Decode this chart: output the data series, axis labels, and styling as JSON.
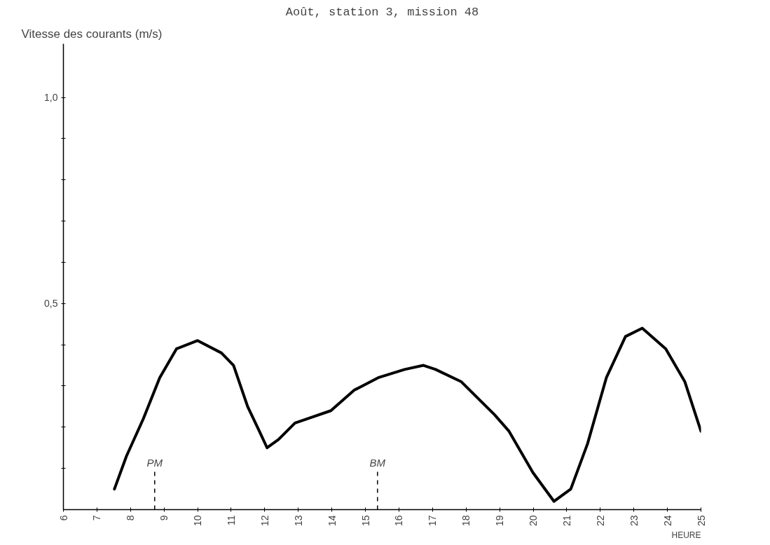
{
  "chart_data": {
    "type": "line",
    "title": "Août, station 3, mission 48",
    "ylabel": "Vitesse des courants (m/s)",
    "xlabel": "HEURE",
    "x": [
      7.52,
      7.88,
      8.38,
      8.87,
      9.37,
      10.0,
      10.71,
      11.07,
      11.49,
      11.84,
      12.07,
      12.41,
      12.9,
      13.25,
      13.97,
      14.67,
      15.38,
      16.17,
      16.73,
      17.09,
      17.86,
      18.85,
      19.28,
      19.99,
      20.62,
      21.12,
      21.62,
      21.9,
      22.18,
      22.75,
      23.25,
      23.95,
      24.52,
      25.0
    ],
    "series": [
      {
        "color": "#000000",
        "values": [
          0.05,
          0.13,
          0.22,
          0.32,
          0.39,
          0.41,
          0.38,
          0.35,
          0.25,
          0.19,
          0.15,
          0.17,
          0.21,
          0.22,
          0.24,
          0.29,
          0.32,
          0.34,
          0.35,
          0.34,
          0.31,
          0.23,
          0.19,
          0.09,
          0.02,
          0.05,
          0.16,
          0.24,
          0.32,
          0.42,
          0.44,
          0.39,
          0.31,
          0.19
        ]
      }
    ],
    "xlim": [
      6,
      25
    ],
    "ylim": [
      0,
      1.13
    ],
    "xticks": [
      6,
      7,
      8,
      9,
      10,
      11,
      12,
      13,
      14,
      15,
      16,
      17,
      18,
      19,
      20,
      21,
      22,
      23,
      24,
      25
    ],
    "yticks": [
      {
        "value": 0.1,
        "label": null
      },
      {
        "value": 0.2,
        "label": null
      },
      {
        "value": 0.3,
        "label": null
      },
      {
        "value": 0.4,
        "label": null
      },
      {
        "value": 0.5,
        "label": "0,5"
      },
      {
        "value": 0.6,
        "label": null
      },
      {
        "value": 0.7,
        "label": null
      },
      {
        "value": 0.8,
        "label": null
      },
      {
        "value": 0.9,
        "label": null
      },
      {
        "value": 1.0,
        "label": "1,0"
      }
    ],
    "ref_lines": [
      {
        "axis": "x",
        "value": 8.72,
        "label": "PM",
        "line_style": "dashed",
        "color": "#000000"
      },
      {
        "axis": "x",
        "value": 15.36,
        "label": "BM",
        "line_style": "dashed",
        "color": "#000000"
      }
    ],
    "grid": false,
    "marker": "none",
    "line_style": "solid"
  }
}
